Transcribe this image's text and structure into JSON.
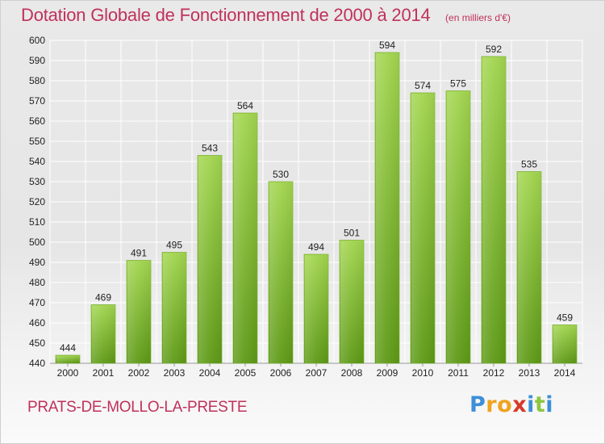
{
  "chart_data": {
    "type": "bar",
    "title": "Dotation Globale de Fonctionnement de 2000 à 2014",
    "subtitle": "(en milliers d'€)",
    "categories": [
      "2000",
      "2001",
      "2002",
      "2003",
      "2004",
      "2005",
      "2006",
      "2007",
      "2008",
      "2009",
      "2010",
      "2011",
      "2012",
      "2013",
      "2014"
    ],
    "values": [
      444,
      469,
      491,
      495,
      543,
      564,
      530,
      494,
      501,
      594,
      574,
      575,
      592,
      535,
      459
    ],
    "ylim": [
      440,
      600
    ],
    "yticks": [
      440,
      450,
      460,
      470,
      480,
      490,
      500,
      510,
      520,
      530,
      540,
      550,
      560,
      570,
      580,
      590,
      600
    ],
    "xlabel": "",
    "ylabel": "",
    "grid": true
  },
  "footer": {
    "commune": "PRATS-DE-MOLLO-LA-PRESTE"
  },
  "logo": {
    "letters": [
      "P",
      "r",
      "o",
      "x",
      "i",
      "t",
      "i"
    ]
  },
  "colors": {
    "title": "#c0315b",
    "bar_top": "#9fd24f",
    "bar_bottom": "#5e9a17",
    "grid": "#ffffff"
  }
}
